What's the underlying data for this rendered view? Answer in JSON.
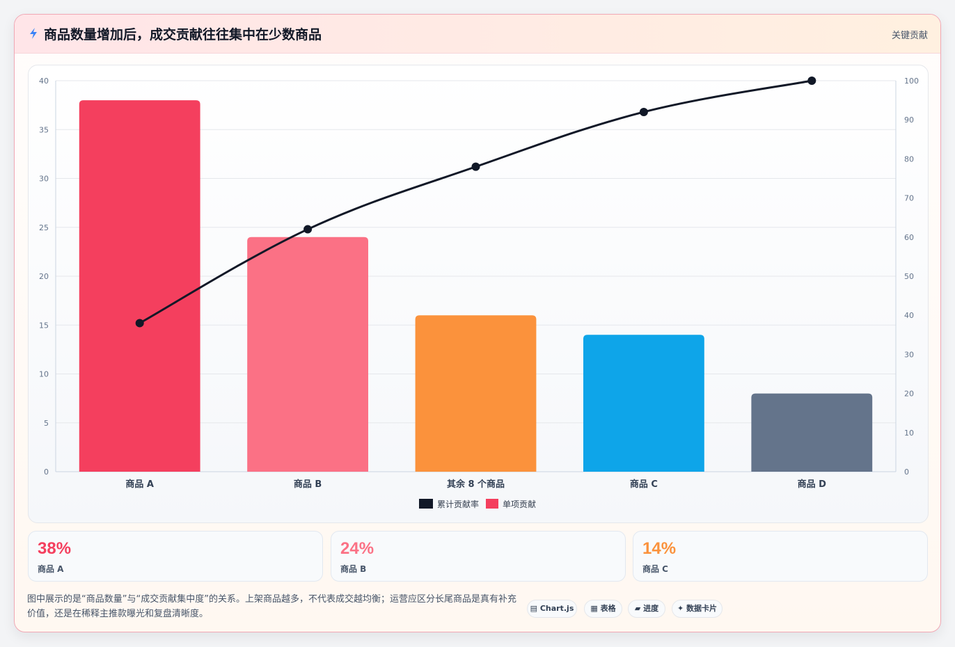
{
  "header": {
    "title": "商品数量增加后，成交贡献往往集中在少数商品",
    "tag": "关键贡献"
  },
  "chart_data": {
    "type": "bar",
    "categories": [
      "商品 A",
      "商品 B",
      "其余 8 个商品",
      "商品 C",
      "商品 D"
    ],
    "series": [
      {
        "name": "累计贡献率",
        "type": "line",
        "axis": "right",
        "values": [
          38,
          62,
          78,
          92,
          100
        ],
        "color": "#111827"
      },
      {
        "name": "单项贡献",
        "type": "bar",
        "axis": "left",
        "values": [
          38,
          24,
          16,
          14,
          8
        ],
        "colors": [
          "#f43f5e",
          "#fb7185",
          "#fb923c",
          "#0ea5e9",
          "#64748b"
        ]
      }
    ],
    "y_left": {
      "min": 0,
      "max": 40,
      "ticks": [
        0,
        5,
        10,
        15,
        20,
        25,
        30,
        35,
        40
      ]
    },
    "y_right": {
      "min": 0,
      "max": 100,
      "ticks": [
        0,
        10,
        20,
        30,
        40,
        50,
        60,
        70,
        80,
        90,
        100
      ]
    },
    "grid": true,
    "legend_position": "bottom"
  },
  "stats": [
    {
      "value": "38%",
      "label": "商品 A",
      "color": "#f43f5e"
    },
    {
      "value": "24%",
      "label": "商品 B",
      "color": "#fb7185"
    },
    {
      "value": "14%",
      "label": "商品 C",
      "color": "#fb923c"
    }
  ],
  "footnote": "图中展示的是“商品数量”与“成交贡献集中度”的关系。上架商品越多，不代表成交越均衡；运营应区分长尾商品是真有补充价值，还是在稀释主推款曝光和复盘清晰度。",
  "chips": [
    {
      "label": "Chart.js",
      "icon": "chart-icon"
    },
    {
      "label": "表格",
      "icon": "table-icon"
    },
    {
      "label": "进度",
      "icon": "progress-icon"
    },
    {
      "label": "数据卡片",
      "icon": "sparkle-icon"
    }
  ]
}
